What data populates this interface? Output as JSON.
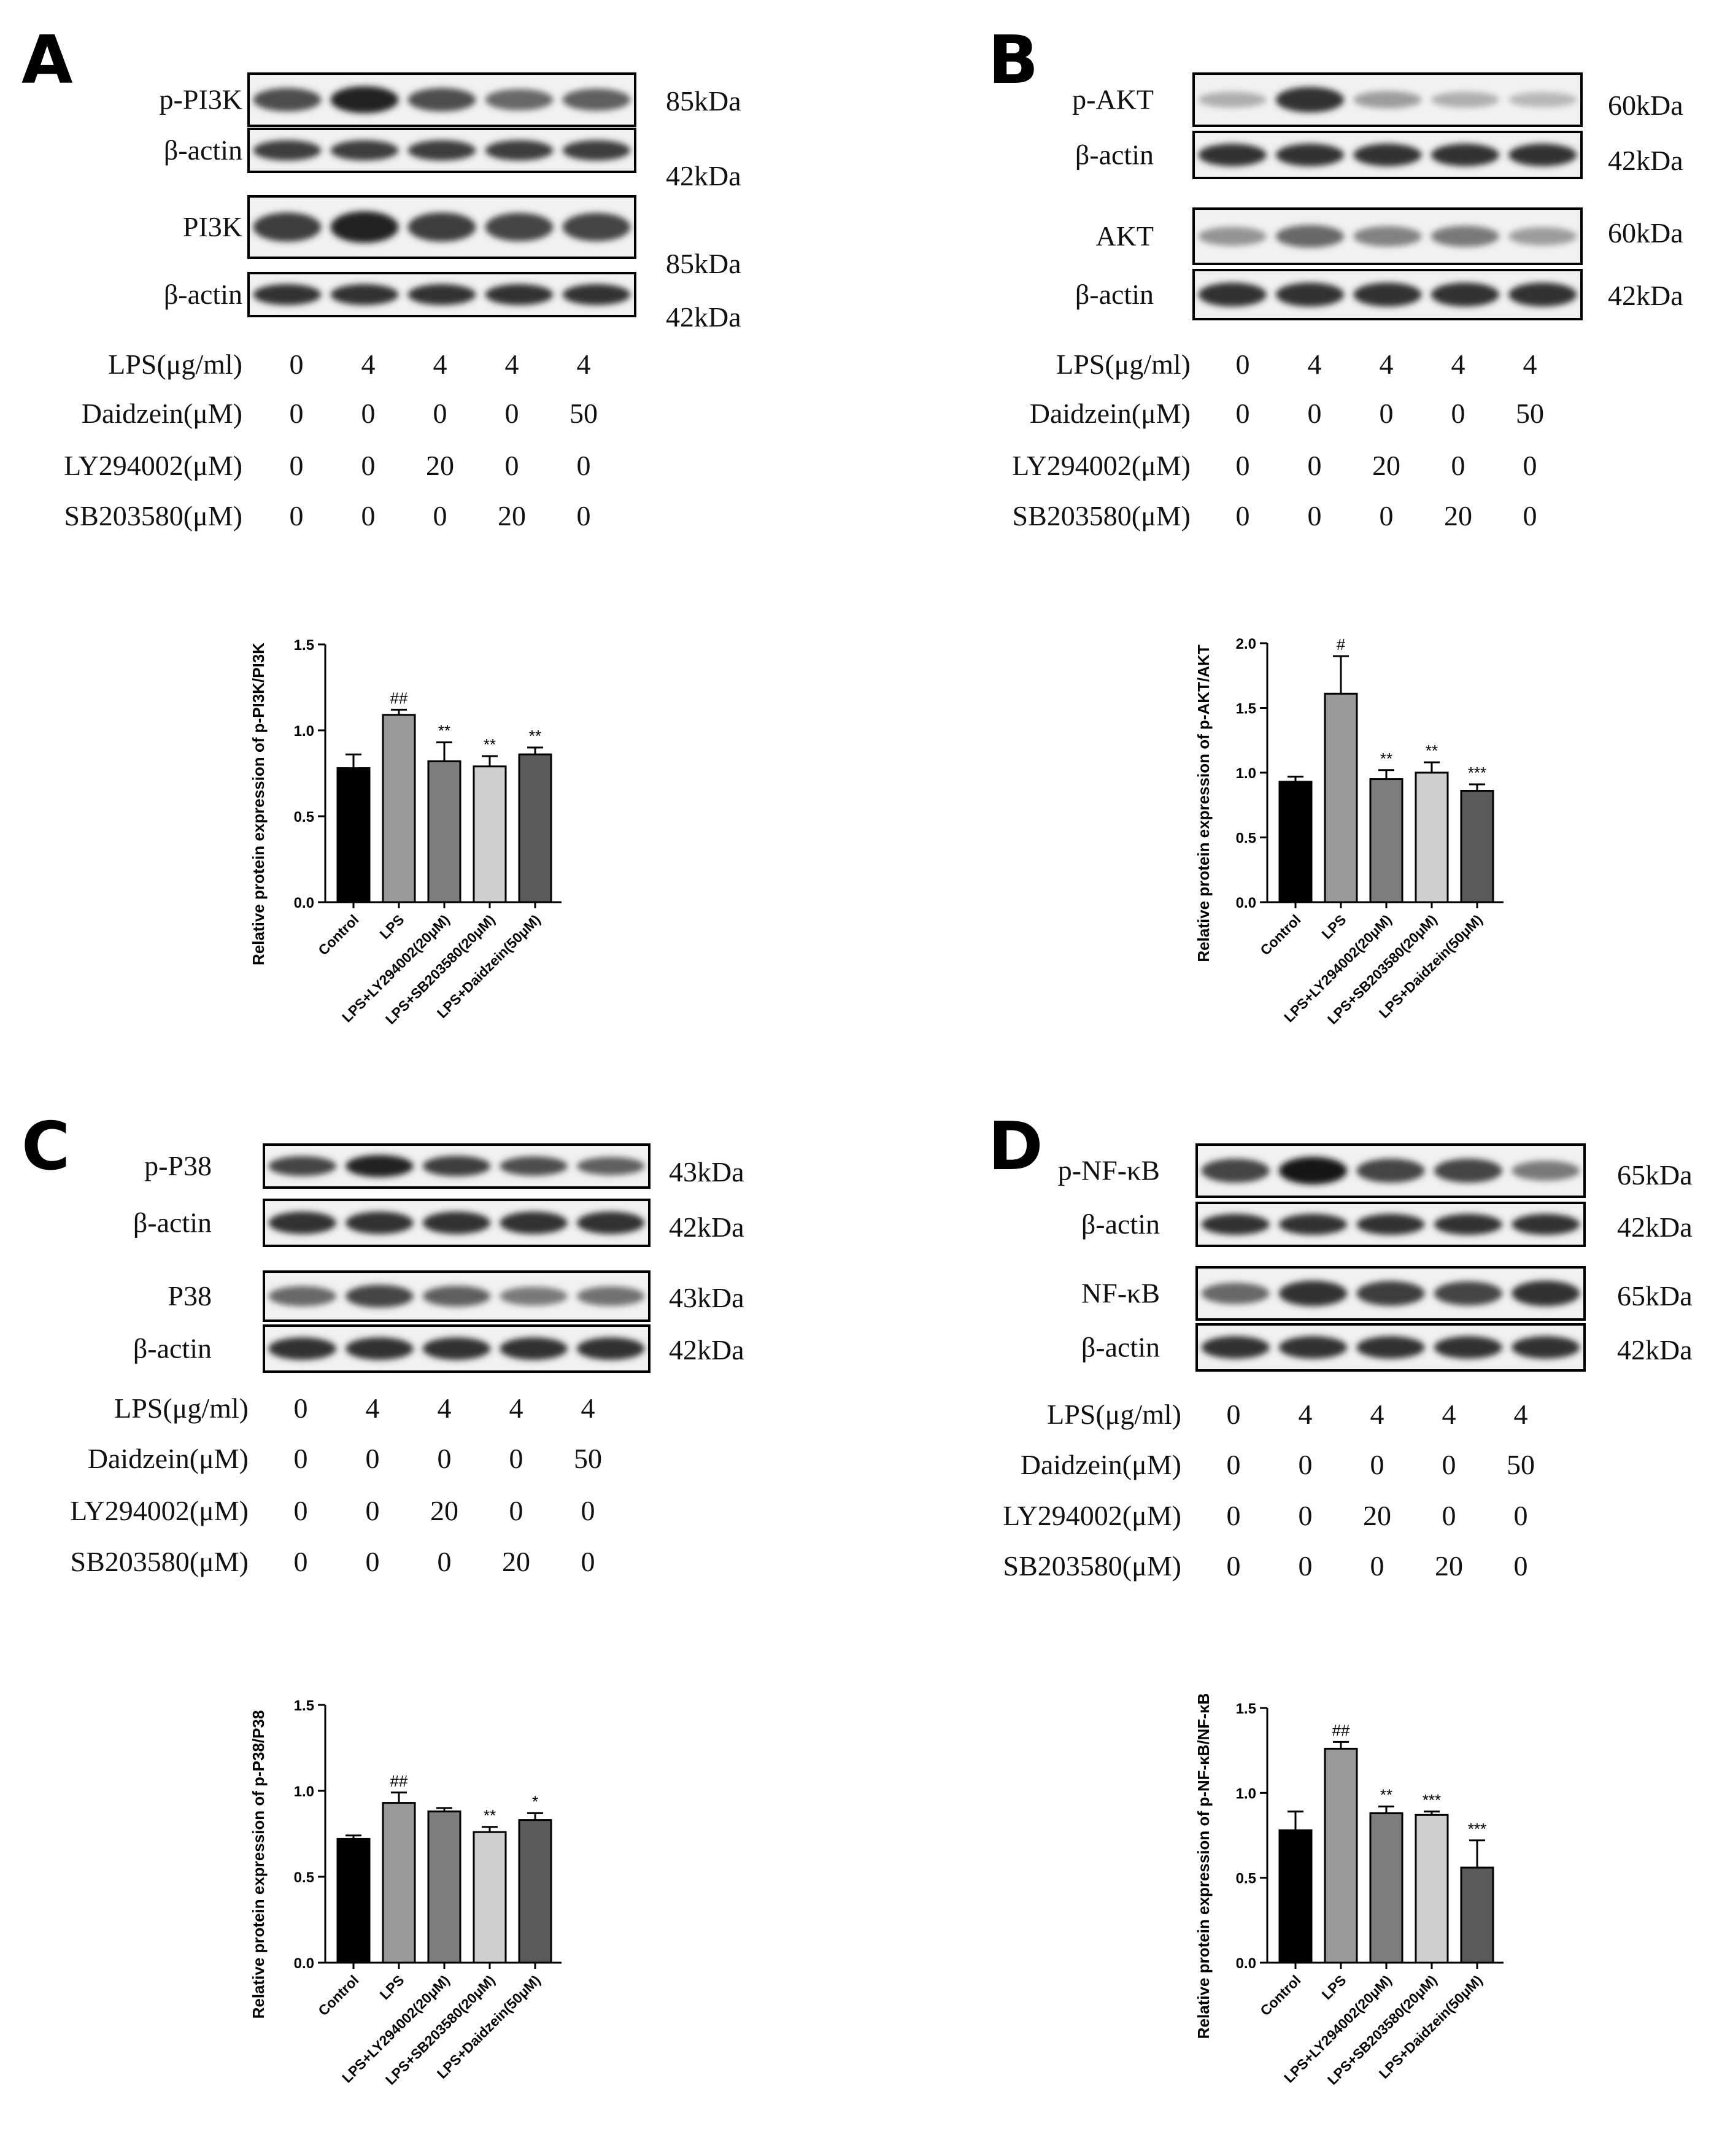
{
  "panels": [
    {
      "letter": "A",
      "blots": [
        {
          "label": "p-PI3K",
          "kda": "85kDa",
          "intensity": [
            0.7,
            0.95,
            0.7,
            0.55,
            0.6
          ]
        },
        {
          "label": "β-actin",
          "kda": "42kDa",
          "intensity": [
            0.8,
            0.8,
            0.8,
            0.8,
            0.8
          ]
        },
        {
          "label": "PI3K",
          "kda": "85kDa",
          "intensity": [
            0.8,
            0.95,
            0.8,
            0.75,
            0.75
          ]
        },
        {
          "label": "β-actin",
          "kda": "42kDa",
          "intensity": [
            0.85,
            0.85,
            0.85,
            0.85,
            0.85
          ]
        }
      ],
      "conditions": [
        {
          "label": "LPS(μg/ml)",
          "values": [
            "0",
            "4",
            "4",
            "4",
            "4"
          ]
        },
        {
          "label": "Daidzein(μM)",
          "values": [
            "0",
            "0",
            "0",
            "0",
            "50"
          ]
        },
        {
          "label": "LY294002(μM)",
          "values": [
            "0",
            "0",
            "20",
            "0",
            "0"
          ]
        },
        {
          "label": "SB203580(μM)",
          "values": [
            "0",
            "0",
            "0",
            "20",
            "0"
          ]
        }
      ]
    },
    {
      "letter": "B",
      "blots": [
        {
          "label": "p-AKT",
          "kda": "60kDa",
          "intensity": [
            0.15,
            0.85,
            0.25,
            0.15,
            0.1
          ]
        },
        {
          "label": "β-actin",
          "kda": "42kDa",
          "intensity": [
            0.85,
            0.85,
            0.85,
            0.85,
            0.85
          ]
        },
        {
          "label": "AKT",
          "kda": "60kDa",
          "intensity": [
            0.3,
            0.55,
            0.4,
            0.45,
            0.25
          ]
        },
        {
          "label": "β-actin",
          "kda": "42kDa",
          "intensity": [
            0.85,
            0.85,
            0.85,
            0.85,
            0.85
          ]
        }
      ],
      "conditions": [
        {
          "label": "LPS(μg/ml)",
          "values": [
            "0",
            "4",
            "4",
            "4",
            "4"
          ]
        },
        {
          "label": "Daidzein(μM)",
          "values": [
            "0",
            "0",
            "0",
            "0",
            "50"
          ]
        },
        {
          "label": "LY294002(μM)",
          "values": [
            "0",
            "0",
            "20",
            "0",
            "0"
          ]
        },
        {
          "label": "SB203580(μM)",
          "values": [
            "0",
            "0",
            "0",
            "20",
            "0"
          ]
        }
      ]
    },
    {
      "letter": "C",
      "blots": [
        {
          "label": "p-P38",
          "kda": "43kDa",
          "intensity": [
            0.75,
            0.95,
            0.8,
            0.7,
            0.6
          ]
        },
        {
          "label": "β-actin",
          "kda": "42kDa",
          "intensity": [
            0.85,
            0.85,
            0.85,
            0.85,
            0.85
          ]
        },
        {
          "label": "P38",
          "kda": "43kDa",
          "intensity": [
            0.55,
            0.75,
            0.6,
            0.45,
            0.5
          ]
        },
        {
          "label": "β-actin",
          "kda": "42kDa",
          "intensity": [
            0.85,
            0.85,
            0.85,
            0.85,
            0.85
          ]
        }
      ],
      "conditions": [
        {
          "label": "LPS(μg/ml)",
          "values": [
            "0",
            "4",
            "4",
            "4",
            "4"
          ]
        },
        {
          "label": "Daidzein(μM)",
          "values": [
            "0",
            "0",
            "0",
            "0",
            "50"
          ]
        },
        {
          "label": "LY294002(μM)",
          "values": [
            "0",
            "0",
            "20",
            "0",
            "0"
          ]
        },
        {
          "label": "SB203580(μM)",
          "values": [
            "0",
            "0",
            "0",
            "20",
            "0"
          ]
        }
      ]
    },
    {
      "letter": "D",
      "blots": [
        {
          "label": "p-NF-κB",
          "kda": "65kDa",
          "intensity": [
            0.75,
            1.0,
            0.75,
            0.75,
            0.45
          ]
        },
        {
          "label": "β-actin",
          "kda": "42kDa",
          "intensity": [
            0.85,
            0.85,
            0.85,
            0.85,
            0.85
          ]
        },
        {
          "label": "NF-κB",
          "kda": "65kDa",
          "intensity": [
            0.55,
            0.85,
            0.8,
            0.75,
            0.85
          ]
        },
        {
          "label": "β-actin",
          "kda": "42kDa",
          "intensity": [
            0.85,
            0.85,
            0.85,
            0.85,
            0.85
          ]
        }
      ],
      "conditions": [
        {
          "label": "LPS(μg/ml)",
          "values": [
            "0",
            "4",
            "4",
            "4",
            "4"
          ]
        },
        {
          "label": "Daidzein(μM)",
          "values": [
            "0",
            "0",
            "0",
            "0",
            "50"
          ]
        },
        {
          "label": "LY294002(μM)",
          "values": [
            "0",
            "0",
            "20",
            "0",
            "0"
          ]
        },
        {
          "label": "SB203580(μM)",
          "values": [
            "0",
            "0",
            "0",
            "20",
            "0"
          ]
        }
      ]
    }
  ],
  "chart_data": [
    {
      "type": "bar",
      "panel": "A",
      "categories": [
        "Control",
        "LPS",
        "LPS+LY294002(20μM)",
        "LPS+SB203580(20μM)",
        "LPS+Daidzein(50μM)"
      ],
      "values": [
        0.78,
        1.09,
        0.82,
        0.79,
        0.86
      ],
      "errors": [
        0.08,
        0.03,
        0.11,
        0.06,
        0.04
      ],
      "significance": [
        "",
        "##",
        "**",
        "**",
        "**"
      ],
      "ylabel": "Relative protein expression of p-PI3K/PI3K",
      "ylim": [
        0,
        1.5
      ],
      "yticks": [
        "0.0",
        "0.5",
        "1.0",
        "1.5"
      ],
      "bar_colors": [
        "#000000",
        "#9a9a9a",
        "#7d7d7d",
        "#cfcfcf",
        "#595959"
      ]
    },
    {
      "type": "bar",
      "panel": "B",
      "categories": [
        "Control",
        "LPS",
        "LPS+LY294002(20μM)",
        "LPS+SB203580(20μM)",
        "LPS+Daidzein(50μM)"
      ],
      "values": [
        0.93,
        1.61,
        0.95,
        1.0,
        0.86
      ],
      "errors": [
        0.04,
        0.29,
        0.07,
        0.08,
        0.05
      ],
      "significance": [
        "",
        "#",
        "**",
        "**",
        "***"
      ],
      "ylabel": "Relative protein expression of p-AKT/AKT",
      "ylim": [
        0,
        2.0
      ],
      "yticks": [
        "0.0",
        "0.5",
        "1.0",
        "1.5",
        "2.0"
      ],
      "bar_colors": [
        "#000000",
        "#9a9a9a",
        "#7d7d7d",
        "#cfcfcf",
        "#595959"
      ]
    },
    {
      "type": "bar",
      "panel": "C",
      "categories": [
        "Control",
        "LPS",
        "LPS+LY294002(20μM)",
        "LPS+SB203580(20μM)",
        "LPS+Daidzein(50μM)"
      ],
      "values": [
        0.72,
        0.93,
        0.88,
        0.76,
        0.83
      ],
      "errors": [
        0.02,
        0.06,
        0.02,
        0.03,
        0.04
      ],
      "significance": [
        "",
        "##",
        "",
        "**",
        "*"
      ],
      "ylabel": "Relative protein expression of p-P38/P38",
      "ylim": [
        0,
        1.5
      ],
      "yticks": [
        "0.0",
        "0.5",
        "1.0",
        "1.5"
      ],
      "bar_colors": [
        "#000000",
        "#9a9a9a",
        "#7d7d7d",
        "#cfcfcf",
        "#595959"
      ]
    },
    {
      "type": "bar",
      "panel": "D",
      "categories": [
        "Control",
        "LPS",
        "LPS+LY294002(20μM)",
        "LPS+SB203580(20μM)",
        "LPS+Daidzein(50μM)"
      ],
      "values": [
        0.78,
        1.26,
        0.88,
        0.87,
        0.56
      ],
      "errors": [
        0.11,
        0.04,
        0.04,
        0.02,
        0.16
      ],
      "significance": [
        "",
        "##",
        "**",
        "***",
        "***"
      ],
      "ylabel": "Relative protein expression of p-NF-κB/NF-κB",
      "ylim": [
        0,
        1.5
      ],
      "yticks": [
        "0.0",
        "0.5",
        "1.0",
        "1.5"
      ],
      "bar_colors": [
        "#000000",
        "#9a9a9a",
        "#7d7d7d",
        "#cfcfcf",
        "#595959"
      ]
    }
  ]
}
